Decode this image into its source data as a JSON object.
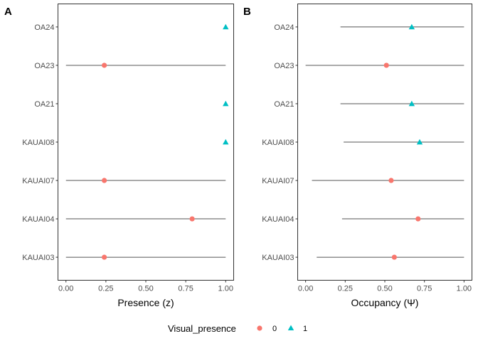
{
  "chart_data": [
    {
      "type": "scatter",
      "panel_tag": "A",
      "xlabel": "Presence (z)",
      "xlim": [
        -0.05,
        1.05
      ],
      "x_ticks": [
        0,
        0.25,
        0.5,
        0.75,
        1
      ],
      "x_tick_labels": [
        "0.00",
        "0.25",
        "0.50",
        "0.75",
        "1.00"
      ],
      "categories": [
        "KAUAI03",
        "KAUAI04",
        "KAUAI07",
        "KAUAI08",
        "OA21",
        "OA23",
        "OA24"
      ],
      "points": [
        {
          "site": "KAUAI03",
          "value": 0.24,
          "low": 0.0,
          "high": 1.0,
          "group": "0"
        },
        {
          "site": "KAUAI04",
          "value": 0.79,
          "low": 0.0,
          "high": 1.0,
          "group": "0"
        },
        {
          "site": "KAUAI07",
          "value": 0.24,
          "low": 0.0,
          "high": 1.0,
          "group": "0"
        },
        {
          "site": "KAUAI08",
          "value": 1.0,
          "low": 1.0,
          "high": 1.0,
          "group": "1"
        },
        {
          "site": "OA21",
          "value": 1.0,
          "low": 1.0,
          "high": 1.0,
          "group": "1"
        },
        {
          "site": "OA23",
          "value": 0.24,
          "low": 0.0,
          "high": 1.0,
          "group": "0"
        },
        {
          "site": "OA24",
          "value": 1.0,
          "low": 1.0,
          "high": 1.0,
          "group": "1"
        }
      ],
      "grid": false
    },
    {
      "type": "scatter",
      "panel_tag": "B",
      "xlabel": "Occupancy (Ψ)",
      "xlim": [
        -0.05,
        1.05
      ],
      "x_ticks": [
        0,
        0.25,
        0.5,
        0.75,
        1
      ],
      "x_tick_labels": [
        "0.00",
        "0.25",
        "0.50",
        "0.75",
        "1.00"
      ],
      "categories": [
        "KAUAI03",
        "KAUAI04",
        "KAUAI07",
        "KAUAI08",
        "OA21",
        "OA23",
        "OA24"
      ],
      "points": [
        {
          "site": "KAUAI03",
          "value": 0.56,
          "low": 0.07,
          "high": 1.0,
          "group": "0"
        },
        {
          "site": "KAUAI04",
          "value": 0.71,
          "low": 0.23,
          "high": 1.0,
          "group": "0"
        },
        {
          "site": "KAUAI07",
          "value": 0.54,
          "low": 0.04,
          "high": 1.0,
          "group": "0"
        },
        {
          "site": "KAUAI08",
          "value": 0.72,
          "low": 0.24,
          "high": 1.0,
          "group": "1"
        },
        {
          "site": "OA21",
          "value": 0.67,
          "low": 0.22,
          "high": 1.0,
          "group": "1"
        },
        {
          "site": "OA23",
          "value": 0.51,
          "low": 0.0,
          "high": 1.0,
          "group": "0"
        },
        {
          "site": "OA24",
          "value": 0.67,
          "low": 0.22,
          "high": 1.0,
          "group": "1"
        }
      ],
      "grid": false
    }
  ],
  "legend": {
    "title": "Visual_presence",
    "position": "bottom",
    "items": [
      {
        "label": "0",
        "shape": "circle",
        "color": "#F8766D"
      },
      {
        "label": "1",
        "shape": "triangle",
        "color": "#00BFC4"
      }
    ]
  }
}
